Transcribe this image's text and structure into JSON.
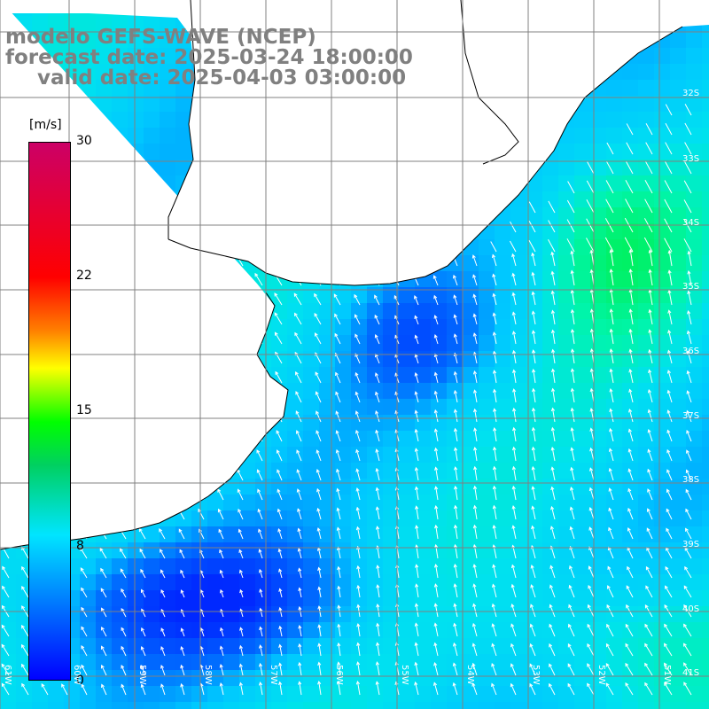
{
  "title": {
    "line1": "modelo GEFS-WAVE (NCEP)",
    "line2": "forecast date: 2025-03-24 18:00:00",
    "line3": "valid date: 2025-04-03 03:00:00"
  },
  "colorbar": {
    "unit": "[m/s]",
    "ticks": [
      "30",
      "22",
      "15",
      "8",
      "0"
    ],
    "min": 0,
    "max": 30,
    "colors": [
      "#0000ff",
      "#00e5ff",
      "#00ff00",
      "#ffff00",
      "#ff0000",
      "#cc0066"
    ]
  },
  "axes": {
    "lat_labels": [
      "32S",
      "33S",
      "34S",
      "35S",
      "36S",
      "37S",
      "38S",
      "39S",
      "40S",
      "41S"
    ],
    "lon_labels": [
      "61W",
      "60W",
      "59W",
      "58W",
      "57W",
      "56W",
      "55W",
      "54W",
      "53W",
      "52W",
      "51W"
    ]
  },
  "colors": {
    "land": "#ffffff",
    "coast": "#000000",
    "grid": "#808080",
    "arrows": "#ffffff"
  }
}
